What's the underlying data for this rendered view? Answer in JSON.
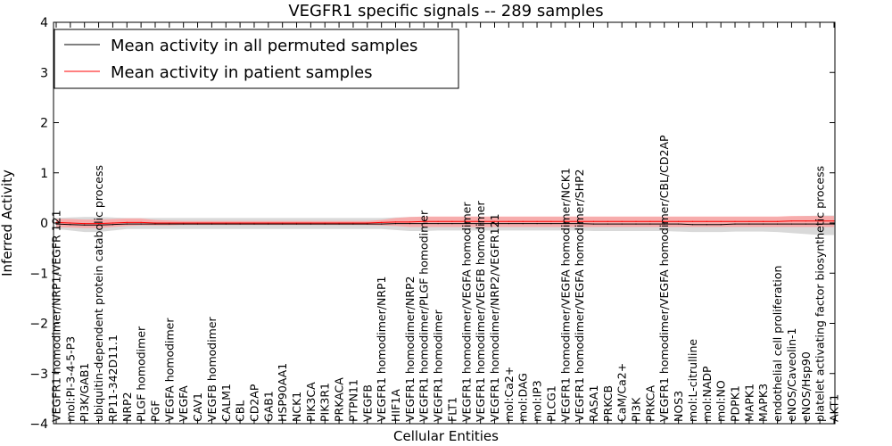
{
  "chart_data": {
    "type": "line",
    "title": "VEGFR1 specific signals -- 289 samples",
    "xlabel": "Cellular Entities",
    "ylabel": "Inferred Activity",
    "ylim": [
      -4,
      4
    ],
    "yticks": [
      -4,
      -3,
      -2,
      -1,
      0,
      1,
      2,
      3,
      4
    ],
    "ytick_labels": [
      "−4",
      "−3",
      "−2",
      "−1",
      "0",
      "1",
      "2",
      "3",
      "4"
    ],
    "grid": false,
    "legend_position": "top-left",
    "categories": [
      "VEGFR1 homodimer/NRP1/VEGFR 121",
      "mol:PI-3-4-5-P3",
      "PI3K/GAB1",
      "ubiquitin-dependent protein catabolic process",
      "RP11-342D11.1",
      "NRP2",
      "PLGF homodimer",
      "PGF",
      "VEGFA homodimer",
      "VEGFA",
      "CAV1",
      "VEGFB homodimer",
      "CALM1",
      "CBL",
      "CD2AP",
      "GAB1",
      "HSP90AA1",
      "NCK1",
      "PIK3CA",
      "PIK3R1",
      "PRKACA",
      "PTPN11",
      "VEGFB",
      "VEGFR1 homodimer/NRP1",
      "HIF1A",
      "VEGFR1 homodimer/NRP2",
      "VEGFR1 homodimer/PLGF homodimer",
      "VEGFR1 homodimer",
      "FLT1",
      "VEGFR1 homodimer/VEGFA homodimer",
      "VEGFR1 homodimer/VEGFB homodimer",
      "VEGFR1 homodimer/NRP2/VEGFR121",
      "mol:Ca2+",
      "mol:DAG",
      "mol:IP3",
      "PLCG1",
      "VEGFR1 homodimer/VEGFA homodimer/NCK1",
      "VEGFR1 homodimer/VEGFA homodimer/SHP2",
      "RASA1",
      "PRKCB",
      "CaM/Ca2+",
      "PI3K",
      "PRKCA",
      "VEGFR1 homodimer/VEGFA homodimer/CBL/CD2AP",
      "NOS3",
      "mol:L-citrulline",
      "mol:NADP",
      "mol:NO",
      "PDPK1",
      "MAPK1",
      "MAPK3",
      "endothelial cell proliferation",
      "eNOS/Caveolin-1",
      "eNOS/Hsp90",
      "platelet activating factor biosynthetic process",
      "AKT1"
    ],
    "series": [
      {
        "name": "Mean activity in all permuted samples",
        "color": "#000000",
        "band_color": "#bfbfbf",
        "values": [
          -0.02,
          -0.03,
          -0.04,
          -0.04,
          -0.03,
          -0.02,
          -0.02,
          -0.02,
          -0.02,
          -0.02,
          -0.02,
          -0.02,
          -0.02,
          -0.02,
          -0.02,
          -0.02,
          -0.02,
          -0.02,
          -0.02,
          -0.02,
          -0.02,
          -0.02,
          -0.02,
          -0.02,
          -0.01,
          -0.01,
          -0.01,
          -0.01,
          -0.01,
          -0.01,
          -0.01,
          -0.01,
          -0.01,
          -0.01,
          -0.01,
          -0.01,
          -0.01,
          -0.01,
          -0.02,
          -0.02,
          -0.02,
          -0.02,
          -0.02,
          -0.02,
          -0.02,
          -0.03,
          -0.03,
          -0.03,
          -0.02,
          -0.02,
          -0.02,
          -0.02,
          -0.02,
          -0.02,
          -0.02,
          -0.02
        ],
        "lower": [
          -0.12,
          -0.15,
          -0.18,
          -0.18,
          -0.15,
          -0.12,
          -0.12,
          -0.12,
          -0.12,
          -0.12,
          -0.12,
          -0.12,
          -0.12,
          -0.12,
          -0.12,
          -0.12,
          -0.12,
          -0.12,
          -0.12,
          -0.12,
          -0.12,
          -0.12,
          -0.12,
          -0.12,
          -0.14,
          -0.16,
          -0.16,
          -0.15,
          -0.15,
          -0.15,
          -0.15,
          -0.15,
          -0.15,
          -0.15,
          -0.15,
          -0.15,
          -0.15,
          -0.15,
          -0.16,
          -0.16,
          -0.16,
          -0.16,
          -0.16,
          -0.16,
          -0.17,
          -0.18,
          -0.18,
          -0.18,
          -0.17,
          -0.17,
          -0.17,
          -0.18,
          -0.2,
          -0.22,
          -0.24,
          -0.24
        ],
        "upper": [
          0.1,
          0.11,
          0.12,
          0.12,
          0.11,
          0.1,
          0.1,
          0.1,
          0.1,
          0.1,
          0.1,
          0.1,
          0.1,
          0.1,
          0.1,
          0.1,
          0.1,
          0.1,
          0.1,
          0.1,
          0.1,
          0.1,
          0.1,
          0.1,
          0.11,
          0.12,
          0.12,
          0.12,
          0.12,
          0.12,
          0.12,
          0.12,
          0.12,
          0.12,
          0.12,
          0.12,
          0.12,
          0.12,
          0.12,
          0.12,
          0.12,
          0.12,
          0.12,
          0.12,
          0.12,
          0.12,
          0.12,
          0.12,
          0.12,
          0.12,
          0.12,
          0.12,
          0.13,
          0.14,
          0.15,
          0.15
        ]
      },
      {
        "name": "Mean activity in patient samples",
        "color": "#ff0000",
        "band_color": "#ff9c9c",
        "values": [
          0.01,
          0.0,
          -0.01,
          -0.01,
          0.0,
          0.01,
          0.01,
          0.0,
          0.0,
          0.0,
          0.0,
          0.0,
          0.0,
          0.0,
          0.0,
          0.0,
          0.0,
          0.0,
          0.0,
          0.0,
          0.0,
          0.0,
          0.0,
          0.01,
          0.02,
          0.02,
          0.03,
          0.03,
          0.03,
          0.03,
          0.03,
          0.03,
          0.03,
          0.03,
          0.03,
          0.03,
          0.03,
          0.03,
          0.03,
          0.03,
          0.03,
          0.03,
          0.03,
          0.03,
          0.03,
          0.03,
          0.03,
          0.03,
          0.03,
          0.03,
          0.03,
          0.03,
          0.04,
          0.04,
          0.04,
          0.04
        ],
        "lower": [
          -0.08,
          -0.09,
          -0.1,
          -0.1,
          -0.08,
          -0.06,
          -0.05,
          -0.05,
          -0.05,
          -0.04,
          -0.04,
          -0.04,
          -0.04,
          -0.04,
          -0.04,
          -0.04,
          -0.04,
          -0.04,
          -0.04,
          -0.04,
          -0.04,
          -0.04,
          -0.04,
          -0.05,
          -0.06,
          -0.08,
          -0.08,
          -0.08,
          -0.08,
          -0.08,
          -0.08,
          -0.08,
          -0.08,
          -0.08,
          -0.08,
          -0.08,
          -0.08,
          -0.08,
          -0.08,
          -0.08,
          -0.08,
          -0.08,
          -0.08,
          -0.08,
          -0.08,
          -0.08,
          -0.08,
          -0.08,
          -0.08,
          -0.08,
          -0.08,
          -0.08,
          -0.08,
          -0.08,
          -0.08,
          -0.08
        ],
        "upper": [
          0.08,
          0.08,
          0.07,
          0.07,
          0.08,
          0.09,
          0.09,
          0.06,
          0.05,
          0.04,
          0.04,
          0.04,
          0.04,
          0.04,
          0.04,
          0.04,
          0.04,
          0.04,
          0.04,
          0.04,
          0.04,
          0.04,
          0.04,
          0.06,
          0.1,
          0.12,
          0.13,
          0.13,
          0.13,
          0.13,
          0.13,
          0.13,
          0.13,
          0.13,
          0.13,
          0.13,
          0.13,
          0.13,
          0.13,
          0.13,
          0.13,
          0.13,
          0.13,
          0.13,
          0.13,
          0.13,
          0.13,
          0.13,
          0.13,
          0.13,
          0.13,
          0.13,
          0.14,
          0.14,
          0.14,
          0.14
        ]
      }
    ]
  }
}
